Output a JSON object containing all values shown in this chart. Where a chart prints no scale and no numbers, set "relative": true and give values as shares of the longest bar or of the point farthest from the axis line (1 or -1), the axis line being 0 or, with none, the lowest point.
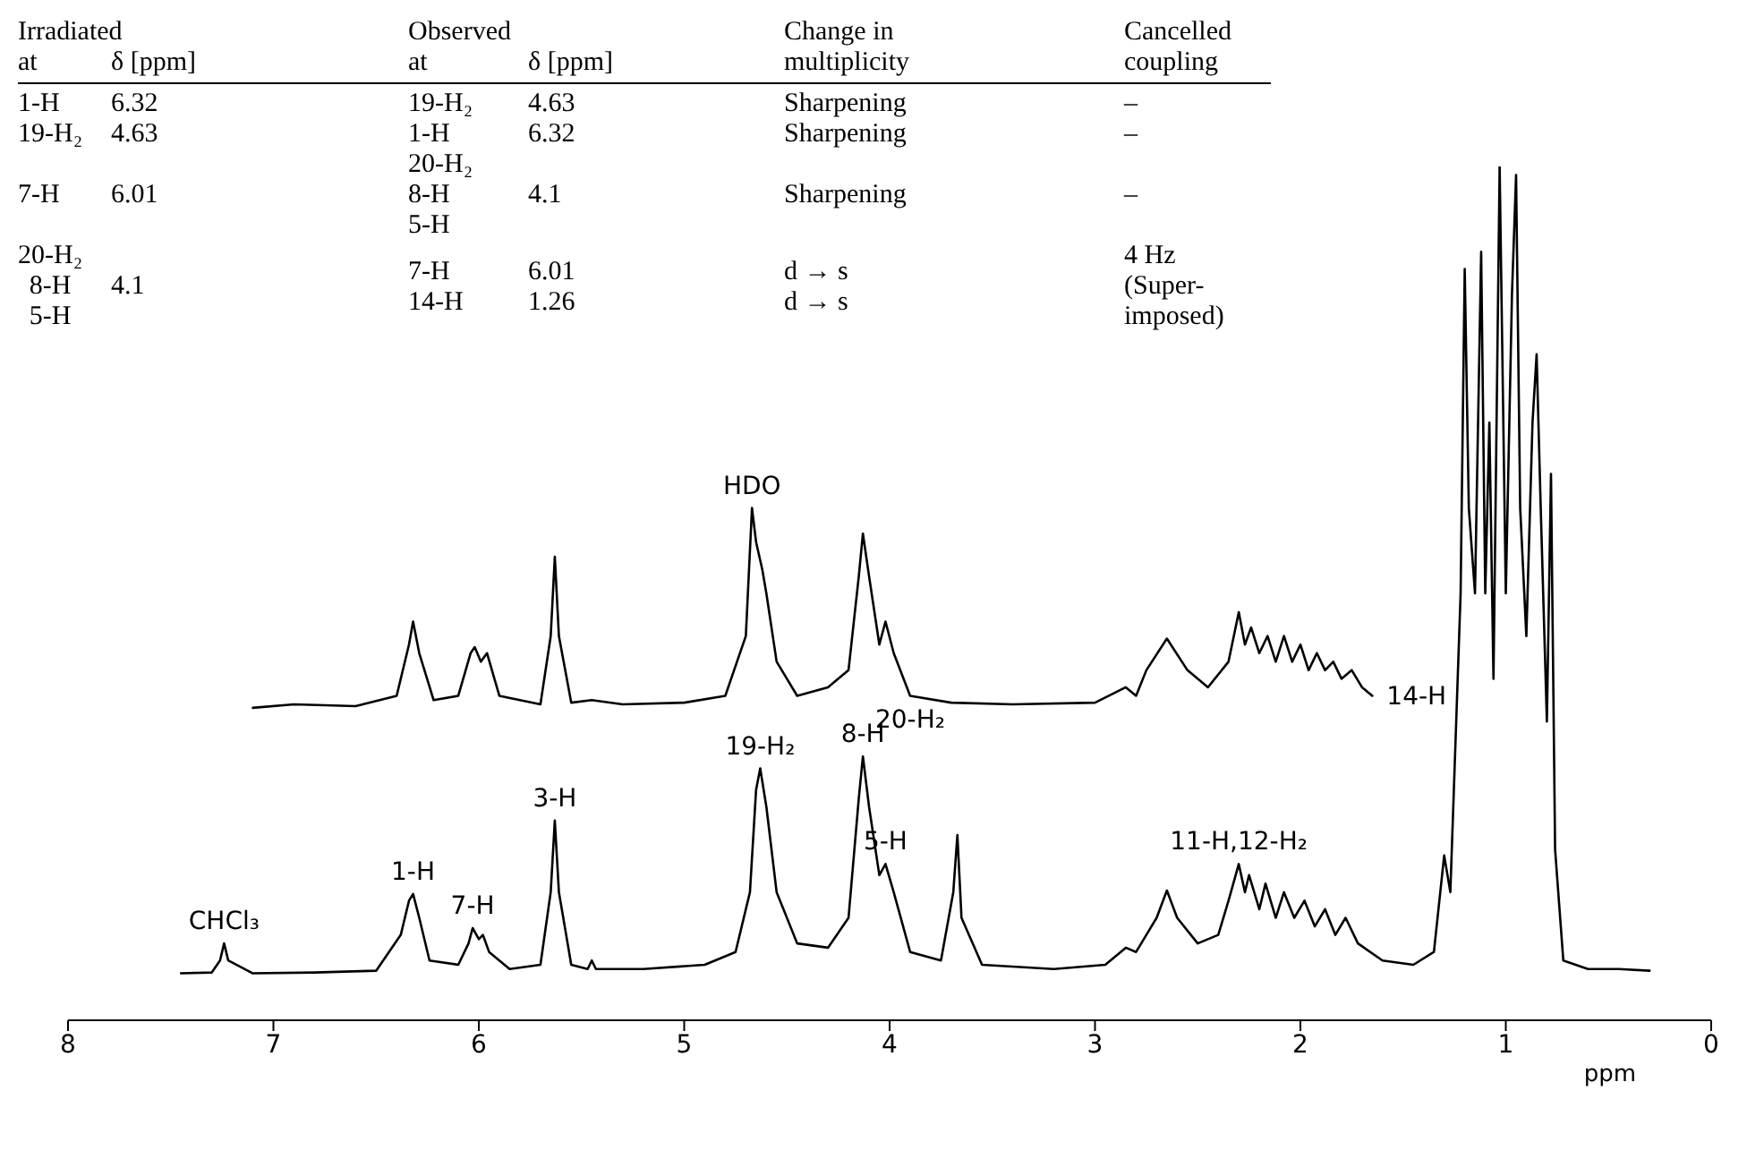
{
  "chart_data": {
    "type": "line",
    "relative": true,
    "xlabel": "ppm",
    "xlim": [
      8,
      0
    ],
    "xticks": [
      8,
      7,
      6,
      5,
      4,
      3,
      2,
      1,
      0
    ],
    "marker": "none",
    "series": [
      {
        "color": "#000000",
        "x": [
          7.45,
          7.3,
          7.26,
          7.24,
          7.22,
          7.1,
          6.8,
          6.5,
          6.38,
          6.34,
          6.32,
          6.29,
          6.24,
          6.1,
          6.05,
          6.03,
          6.0,
          5.98,
          5.95,
          5.85,
          5.7,
          5.65,
          5.63,
          5.61,
          5.55,
          5.47,
          5.45,
          5.43,
          5.2,
          4.9,
          4.75,
          4.68,
          4.65,
          4.63,
          4.6,
          4.55,
          4.45,
          4.3,
          4.2,
          4.15,
          4.13,
          4.1,
          4.05,
          4.02,
          3.98,
          3.9,
          3.75,
          3.69,
          3.67,
          3.65,
          3.55,
          3.2,
          2.95,
          2.85,
          2.8,
          2.75,
          2.7,
          2.65,
          2.6,
          2.5,
          2.4,
          2.35,
          2.3,
          2.27,
          2.25,
          2.2,
          2.17,
          2.12,
          2.08,
          2.03,
          1.98,
          1.93,
          1.88,
          1.83,
          1.78,
          1.72,
          1.6,
          1.45,
          1.35,
          1.3,
          1.27,
          1.22,
          1.2,
          1.18,
          1.15,
          1.12,
          1.1,
          1.08,
          1.06,
          1.03,
          1.0,
          0.97,
          0.95,
          0.93,
          0.9,
          0.87,
          0.85,
          0.83,
          0.8,
          0.78,
          0.76,
          0.72,
          0.6,
          0.45,
          0.3
        ],
        "values": [
          0.055,
          0.056,
          0.07,
          0.09,
          0.07,
          0.055,
          0.056,
          0.058,
          0.1,
          0.14,
          0.148,
          0.12,
          0.07,
          0.065,
          0.09,
          0.108,
          0.095,
          0.1,
          0.08,
          0.06,
          0.065,
          0.15,
          0.234,
          0.15,
          0.065,
          0.06,
          0.07,
          0.06,
          0.06,
          0.065,
          0.08,
          0.15,
          0.27,
          0.295,
          0.25,
          0.15,
          0.09,
          0.085,
          0.12,
          0.26,
          0.309,
          0.25,
          0.17,
          0.183,
          0.15,
          0.08,
          0.07,
          0.15,
          0.217,
          0.12,
          0.065,
          0.06,
          0.065,
          0.085,
          0.08,
          0.1,
          0.12,
          0.152,
          0.12,
          0.09,
          0.1,
          0.14,
          0.183,
          0.15,
          0.17,
          0.13,
          0.16,
          0.12,
          0.15,
          0.12,
          0.14,
          0.11,
          0.13,
          0.1,
          0.12,
          0.09,
          0.07,
          0.065,
          0.08,
          0.193,
          0.15,
          0.5,
          0.88,
          0.6,
          0.5,
          0.9,
          0.5,
          0.7,
          0.4,
          1.0,
          0.5,
          0.85,
          0.99,
          0.6,
          0.45,
          0.7,
          0.78,
          0.6,
          0.35,
          0.64,
          0.2,
          0.07,
          0.06,
          0.06,
          0.058
        ]
      },
      {
        "color": "#000000",
        "x": [
          7.1,
          6.9,
          6.6,
          6.4,
          6.34,
          6.32,
          6.29,
          6.22,
          6.1,
          6.04,
          6.02,
          5.99,
          5.96,
          5.9,
          5.7,
          5.65,
          5.63,
          5.61,
          5.55,
          5.45,
          5.3,
          5.0,
          4.8,
          4.7,
          4.67,
          4.65,
          4.62,
          4.6,
          4.55,
          4.45,
          4.3,
          4.2,
          4.15,
          4.13,
          4.1,
          4.05,
          4.02,
          3.98,
          3.9,
          3.7,
          3.4,
          3.0,
          2.85,
          2.8,
          2.75,
          2.65,
          2.55,
          2.45,
          2.35,
          2.3,
          2.27,
          2.24,
          2.2,
          2.16,
          2.12,
          2.08,
          2.04,
          2.0,
          1.96,
          1.92,
          1.88,
          1.84,
          1.8,
          1.75,
          1.7,
          1.65
        ],
        "values": [
          0.366,
          0.37,
          0.368,
          0.38,
          0.44,
          0.467,
          0.43,
          0.375,
          0.38,
          0.43,
          0.437,
          0.42,
          0.43,
          0.38,
          0.37,
          0.45,
          0.543,
          0.45,
          0.372,
          0.375,
          0.37,
          0.372,
          0.38,
          0.45,
          0.6,
          0.56,
          0.528,
          0.5,
          0.42,
          0.38,
          0.39,
          0.41,
          0.52,
          0.57,
          0.52,
          0.44,
          0.467,
          0.43,
          0.38,
          0.372,
          0.37,
          0.372,
          0.39,
          0.38,
          0.41,
          0.447,
          0.41,
          0.39,
          0.42,
          0.478,
          0.44,
          0.46,
          0.43,
          0.45,
          0.42,
          0.45,
          0.42,
          0.44,
          0.41,
          0.43,
          0.41,
          0.42,
          0.4,
          0.41,
          0.39,
          0.38
        ]
      }
    ],
    "annotations": [
      "Irradiated\nat",
      "δ [ppm]",
      "Observed\nat",
      "δ [ppm]",
      "Change in\nmultiplicity",
      "Cancelled\ncoupling",
      "1-H",
      "6.32",
      "19-H₂",
      "4.63",
      "Sharpening",
      "–",
      "19-H₂",
      "4.63",
      "1-H",
      "6.32",
      "Sharpening",
      "–",
      "7-H",
      "6.01",
      "20-H₂\n8-H\n5-H",
      "4.1",
      "Sharpening",
      "–",
      "20-H₂\n8-H\n5-H",
      "4.1",
      "7-H\n14-H",
      "6.01\n1.26",
      "d → s\nd → s",
      "4 Hz\n(Super-\nimposed)",
      {
        "text": "CHCl₃",
        "x": 7.24,
        "y": 0.09
      },
      {
        "text": "1-H",
        "x": 6.32,
        "y": 0.148
      },
      {
        "text": "7-H",
        "x": 6.03,
        "y": 0.108
      },
      {
        "text": "3-H",
        "x": 5.63,
        "y": 0.234
      },
      {
        "text": "19-H₂",
        "x": 4.63,
        "y": 0.295
      },
      {
        "text": "8-H",
        "x": 4.13,
        "y": 0.309
      },
      {
        "text": "5-H",
        "x": 4.02,
        "y": 0.183
      },
      {
        "text": "11-H,12-H₂",
        "x": 2.3,
        "y": 0.183
      },
      {
        "text": "HDO",
        "x": 4.67,
        "y": 0.6
      },
      {
        "text": "20-H₂",
        "x": 3.9,
        "y": 0.38
      },
      {
        "text": "14-H",
        "x": 1.65,
        "y": 0.38
      }
    ]
  }
}
